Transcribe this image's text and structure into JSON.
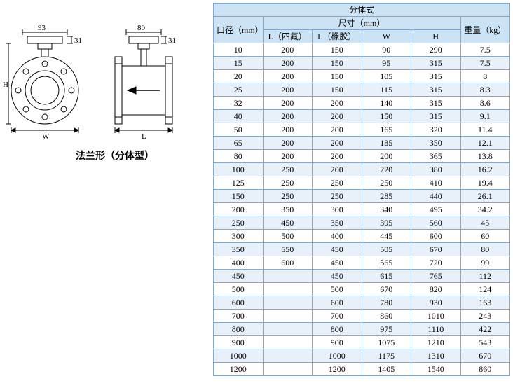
{
  "diagram": {
    "caption": "法兰形（分体型）",
    "dim93": "93",
    "dim31a": "31",
    "dim80": "80",
    "dim31b": "31",
    "labelH": "H",
    "labelW": "W",
    "labelL": "L",
    "stroke": "#000000",
    "fill": "#ffffff"
  },
  "table": {
    "title": "分体式",
    "col_diameter": "口径（mm）",
    "col_dims": "尺寸（mm）",
    "col_weight": "重量（kg）",
    "col_l1": "L（四氟）",
    "col_l2": "L（橡胶）",
    "col_w": "W",
    "col_h": "H",
    "header_bg": "#cce3f5",
    "border_color": "#84a8cc",
    "stripe_even": "#e8f1f9",
    "stripe_odd": "#ffffff",
    "columns_count": 6,
    "rows": [
      [
        "10",
        "200",
        "150",
        "90",
        "290",
        "7.5"
      ],
      [
        "15",
        "200",
        "150",
        "95",
        "315",
        "7.5"
      ],
      [
        "20",
        "200",
        "150",
        "105",
        "315",
        "8"
      ],
      [
        "25",
        "200",
        "150",
        "115",
        "315",
        "8.3"
      ],
      [
        "32",
        "200",
        "200",
        "140",
        "315",
        "8.6"
      ],
      [
        "40",
        "200",
        "200",
        "150",
        "315",
        "9.1"
      ],
      [
        "50",
        "200",
        "200",
        "165",
        "320",
        "11.4"
      ],
      [
        "65",
        "200",
        "200",
        "185",
        "350",
        "12.1"
      ],
      [
        "80",
        "200",
        "200",
        "200",
        "365",
        "13.8"
      ],
      [
        "100",
        "250",
        "200",
        "220",
        "380",
        "16.2"
      ],
      [
        "125",
        "250",
        "250",
        "250",
        "410",
        "19.4"
      ],
      [
        "150",
        "250",
        "250",
        "285",
        "440",
        "26.1"
      ],
      [
        "200",
        "350",
        "300",
        "340",
        "495",
        "34.2"
      ],
      [
        "250",
        "450",
        "350",
        "395",
        "560",
        "45"
      ],
      [
        "300",
        "500",
        "400",
        "445",
        "600",
        "60"
      ],
      [
        "350",
        "550",
        "450",
        "505",
        "670",
        "80"
      ],
      [
        "400",
        "600",
        "450",
        "565",
        "720",
        "99"
      ],
      [
        "450",
        "",
        "450",
        "615",
        "765",
        "112"
      ],
      [
        "500",
        "",
        "500",
        "670",
        "820",
        "124"
      ],
      [
        "600",
        "",
        "600",
        "780",
        "930",
        "163"
      ],
      [
        "700",
        "",
        "700",
        "860",
        "1010",
        "243"
      ],
      [
        "800",
        "",
        "800",
        "975",
        "1110",
        "422"
      ],
      [
        "900",
        "",
        "900",
        "1075",
        "1210",
        "543"
      ],
      [
        "1000",
        "",
        "1000",
        "1175",
        "1310",
        "670"
      ],
      [
        "1200",
        "",
        "1200",
        "1405",
        "1540",
        "860"
      ]
    ]
  }
}
